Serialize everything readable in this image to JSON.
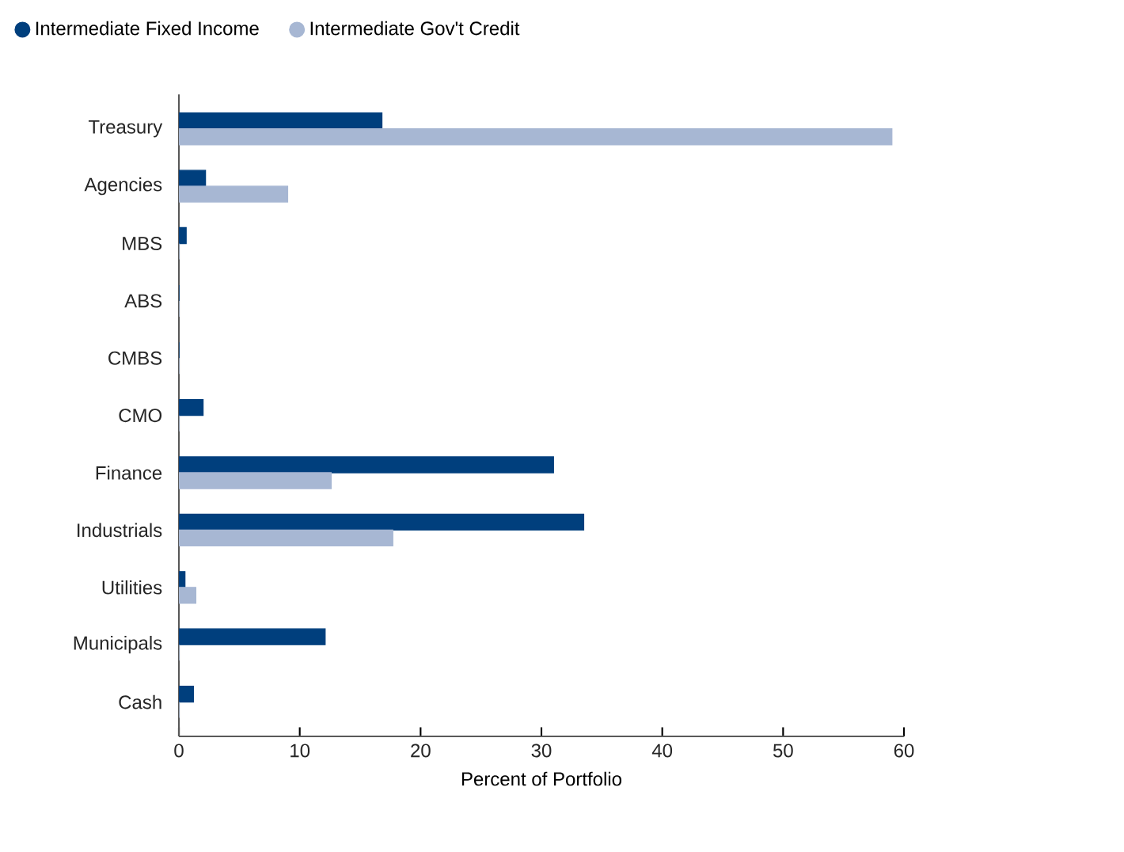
{
  "chart_data": {
    "type": "bar",
    "orientation": "horizontal",
    "xlabel": "Percent of Portfolio",
    "categories": [
      "Treasury",
      "Agencies",
      "MBS",
      "ABS",
      "CMBS",
      "CMO",
      "Finance",
      "Industrials",
      "Utilities",
      "Municipals",
      "Cash"
    ],
    "series": [
      {
        "name": "Intermediate Fixed Income",
        "color": "#003f7d",
        "values": [
          16.8,
          2.2,
          0.6,
          0,
          0,
          2.0,
          31.0,
          33.5,
          0.5,
          12.1,
          1.2
        ]
      },
      {
        "name": "Intermediate Gov't Credit",
        "color": "#a7b7d3",
        "values": [
          59.0,
          9.0,
          0,
          0,
          0,
          0,
          12.6,
          17.7,
          1.4,
          0,
          0
        ]
      }
    ],
    "xlim": [
      0,
      60
    ],
    "xticks": [
      0,
      10,
      20,
      30,
      40,
      50,
      60
    ],
    "grid": false,
    "legend": "top"
  }
}
